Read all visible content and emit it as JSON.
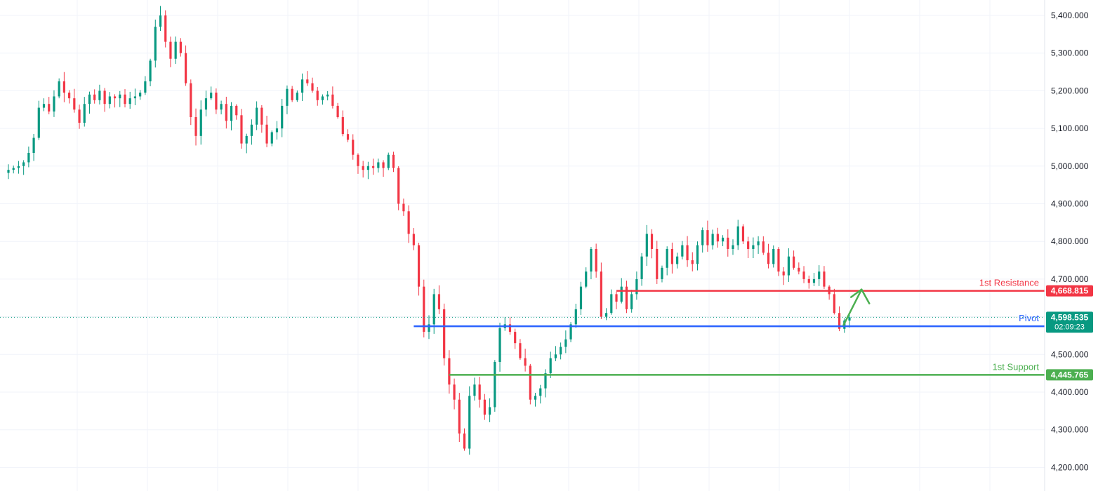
{
  "colors": {
    "up": "#089981",
    "down": "#f23645",
    "resistance": "#f23645",
    "pivot": "#2962ff",
    "support": "#4caf50",
    "price": "#089981",
    "arrow": "#4caf50",
    "grid": "#f0f3fa",
    "axis_text": "#131722"
  },
  "chart_data": {
    "type": "candlestick",
    "y_axis": {
      "position": "right",
      "ylim": [
        4150,
        5420
      ],
      "ticks": [
        "5,400.000",
        "5,300.000",
        "5,200.000",
        "5,100.000",
        "5,000.000",
        "4,900.000",
        "4,800.000",
        "4,700.000",
        "4,600.000",
        "4,500.000",
        "4,400.000",
        "4,300.000",
        "4,200.000"
      ],
      "tick_values": [
        5400,
        5300,
        5200,
        5100,
        5000,
        4900,
        4800,
        4700,
        4600,
        4500,
        4400,
        4300,
        4200
      ]
    },
    "grid": true,
    "levels": [
      {
        "id": "resistance",
        "label": "1st Resistance",
        "value": 4668.815,
        "value_text": "4,668.815",
        "start_index": 120
      },
      {
        "id": "pivot",
        "label": "Pivot",
        "value": 4574.849,
        "value_text": "4,574.849",
        "start_index": 80
      },
      {
        "id": "support",
        "label": "1st Support",
        "value": 4445.765,
        "value_text": "4,445.765",
        "start_index": 87
      }
    ],
    "current_price": {
      "value": 4598.535,
      "value_text": "4,598.535",
      "countdown": "02:09:23"
    },
    "projection_arrow": {
      "from_value": 4578,
      "to_value": 4668.815,
      "from_index": 164,
      "to_index": 167
    },
    "series": [
      {
        "name": "",
        "closes": [
          4990,
          4995,
          5000,
          5010,
          5035,
          5075,
          5155,
          5165,
          5145,
          5185,
          5225,
          5195,
          5180,
          5150,
          5115,
          5165,
          5190,
          5175,
          5200,
          5165,
          5185,
          5180,
          5190,
          5165,
          5180,
          5185,
          5195,
          5225,
          5280,
          5370,
          5400,
          5330,
          5285,
          5330,
          5300,
          5220,
          5130,
          5080,
          5150,
          5180,
          5195,
          5150,
          5165,
          5120,
          5160,
          5135,
          5060,
          5080,
          5110,
          5155,
          5110,
          5060,
          5090,
          5100,
          5160,
          5205,
          5175,
          5195,
          5230,
          5220,
          5200,
          5175,
          5185,
          5190,
          5160,
          5130,
          5085,
          5070,
          5030,
          5000,
          4990,
          5000,
          4995,
          5010,
          4995,
          5030,
          4995,
          4900,
          4880,
          4820,
          4790,
          4680,
          4560,
          4580,
          4660,
          4620,
          4490,
          4420,
          4380,
          4290,
          4250,
          4390,
          4420,
          4380,
          4340,
          4360,
          4480,
          4570,
          4580,
          4560,
          4530,
          4490,
          4470,
          4380,
          4390,
          4410,
          4450,
          4490,
          4500,
          4520,
          4540,
          4580,
          4620,
          4680,
          4720,
          4780,
          4720,
          4600,
          4610,
          4660,
          4640,
          4680,
          4620,
          4660,
          4700,
          4760,
          4820,
          4780,
          4700,
          4730,
          4780,
          4740,
          4760,
          4790,
          4750,
          4740,
          4790,
          4830,
          4790,
          4820,
          4800,
          4810,
          4780,
          4790,
          4840,
          4800,
          4780,
          4790,
          4800,
          4770,
          4740,
          4780,
          4720,
          4710,
          4760,
          4730,
          4720,
          4700,
          4690,
          4700,
          4720,
          4680,
          4660,
          4610,
          4568,
          4590,
          4598.535
        ]
      }
    ]
  }
}
